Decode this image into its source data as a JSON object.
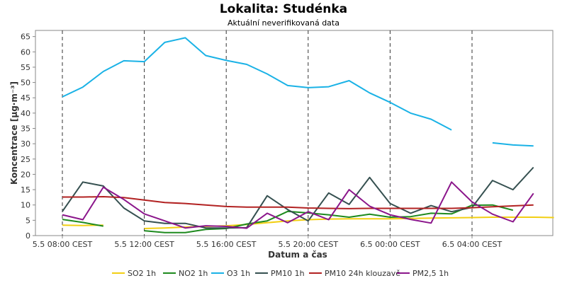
{
  "chart_data": {
    "type": "line",
    "title": "Lokalita: Studénka",
    "subtitle": "Aktuální neverifikovaná data",
    "xlabel": "Datum a čas",
    "ylabel": "Koncentrace [µg·m⁻³]",
    "ylim": [
      0,
      67
    ],
    "yticks": [
      0,
      5,
      10,
      15,
      20,
      25,
      30,
      35,
      40,
      45,
      50,
      55,
      60,
      65
    ],
    "x_unit": "hours since 5.5 08:00 CEST",
    "xlim": [
      0,
      24
    ],
    "xticks": [
      {
        "x": 0,
        "label": "5.5 08:00 CEST"
      },
      {
        "x": 4,
        "label": "5.5 12:00 CEST"
      },
      {
        "x": 8,
        "label": "5.5 16:00 CEST"
      },
      {
        "x": 12,
        "label": "5.5 20:00 CEST"
      },
      {
        "x": 16,
        "label": "6.5 00:00 CEST"
      },
      {
        "x": 20,
        "label": "6.5 04:00 CEST"
      }
    ],
    "grid": true,
    "legend": "bottom",
    "series": [
      {
        "name": "SO2 1h",
        "color": "#f2cf13",
        "values": [
          3.4,
          3.3,
          3.4,
          null,
          2.3,
          2.5,
          2.8,
          3.0,
          3.2,
          3.6,
          4.2,
          4.8,
          5.2,
          5.4,
          5.5,
          5.5,
          5.5,
          5.6,
          5.7,
          5.8,
          5.9,
          6.0,
          6.0,
          6.0,
          5.9
        ]
      },
      {
        "name": "NO2 1h",
        "color": "#1e8a1e",
        "values": [
          5.3,
          4.3,
          3.1,
          null,
          1.6,
          1.0,
          1.0,
          2.0,
          2.3,
          3.8,
          4.8,
          7.9,
          7.4,
          6.8,
          6.0,
          7.0,
          6.0,
          6.2,
          7.3,
          7.1,
          9.9,
          10.0,
          8.3
        ]
      },
      {
        "name": "O3 1h",
        "color": "#1ab2e6",
        "values": [
          45.3,
          48.5,
          53.6,
          57.1,
          56.8,
          63.1,
          64.6,
          58.8,
          57.2,
          55.9,
          52.8,
          49.0,
          48.3,
          48.6,
          50.6,
          46.6,
          43.5,
          40.0,
          38.0,
          34.5,
          null,
          30.3,
          29.6,
          29.3
        ]
      },
      {
        "name": "PM10 1h",
        "color": "#355050",
        "values": [
          7.9,
          17.5,
          16.2,
          9.0,
          4.8,
          4.0,
          4.0,
          2.5,
          2.5,
          2.6,
          13.0,
          8.5,
          4.8,
          13.9,
          10.2,
          19.0,
          10.5,
          7.3,
          9.8,
          7.8,
          9.2,
          18.0,
          15.0,
          22.3
        ]
      },
      {
        "name": "PM10 24h klouzavě",
        "color": "#b22222",
        "values": [
          12.6,
          12.6,
          12.7,
          12.4,
          11.6,
          10.8,
          10.5,
          10.0,
          9.5,
          9.3,
          9.3,
          9.3,
          9.0,
          8.9,
          8.8,
          8.9,
          8.9,
          8.9,
          8.9,
          8.9,
          9.1,
          9.4,
          9.7,
          10.0
        ]
      },
      {
        "name": "PM2,5 1h",
        "color": "#8b168b",
        "values": [
          6.8,
          5.2,
          15.8,
          11.8,
          7.1,
          4.8,
          2.5,
          3.2,
          3.0,
          2.4,
          7.3,
          4.2,
          7.8,
          5.2,
          15.0,
          9.6,
          6.8,
          5.3,
          4.1,
          17.5,
          11.0,
          7.0,
          4.5,
          13.8
        ]
      }
    ]
  }
}
